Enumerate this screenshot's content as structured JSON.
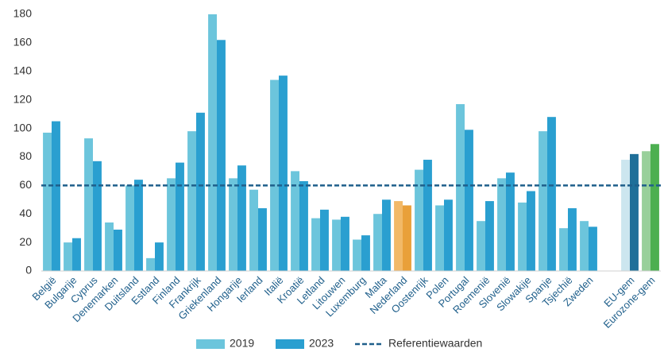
{
  "chart_data": {
    "type": "bar",
    "categories": [
      "België",
      "Bulgarije",
      "Cyprus",
      "Denemarken",
      "Duitsland",
      "Estland",
      "Finland",
      "Frankrijk",
      "Griekenland",
      "Hongarije",
      "Ierland",
      "Italië",
      "Kroatië",
      "Letland",
      "Litouwen",
      "Luxemburg",
      "Malta",
      "Nederland",
      "Oostenrijk",
      "Polen",
      "Portugal",
      "Roemenië",
      "Slovenië",
      "Slowakije",
      "Spanje",
      "Tsjechië",
      "Zweden",
      null,
      "EU-gem",
      "Eurozone-gem"
    ],
    "series": [
      {
        "name": "2019",
        "color": "#6cc5dc",
        "values": [
          97,
          20,
          93,
          34,
          60,
          9,
          65,
          98,
          180,
          65,
          57,
          134,
          70,
          37,
          36,
          22,
          40,
          49,
          71,
          46,
          117,
          35,
          65,
          48,
          98,
          30,
          35,
          null,
          78,
          84
        ],
        "colors": [
          "#6cc5dc",
          "#6cc5dc",
          "#6cc5dc",
          "#6cc5dc",
          "#6cc5dc",
          "#6cc5dc",
          "#6cc5dc",
          "#6cc5dc",
          "#6cc5dc",
          "#6cc5dc",
          "#6cc5dc",
          "#6cc5dc",
          "#6cc5dc",
          "#6cc5dc",
          "#6cc5dc",
          "#6cc5dc",
          "#6cc5dc",
          "#f2b968",
          "#6cc5dc",
          "#6cc5dc",
          "#6cc5dc",
          "#6cc5dc",
          "#6cc5dc",
          "#6cc5dc",
          "#6cc5dc",
          "#6cc5dc",
          "#6cc5dc",
          null,
          "#cce6ef",
          "#98d09a"
        ]
      },
      {
        "name": "2023",
        "color": "#2a9fd0",
        "values": [
          105,
          23,
          77,
          29,
          64,
          20,
          76,
          111,
          162,
          74,
          44,
          137,
          63,
          43,
          38,
          25,
          50,
          46,
          78,
          50,
          99,
          49,
          69,
          56,
          108,
          44,
          31,
          null,
          82,
          89
        ],
        "colors": [
          "#2a9fd0",
          "#2a9fd0",
          "#2a9fd0",
          "#2a9fd0",
          "#2a9fd0",
          "#2a9fd0",
          "#2a9fd0",
          "#2a9fd0",
          "#2a9fd0",
          "#2a9fd0",
          "#2a9fd0",
          "#2a9fd0",
          "#2a9fd0",
          "#2a9fd0",
          "#2a9fd0",
          "#2a9fd0",
          "#2a9fd0",
          "#e9a03a",
          "#2a9fd0",
          "#2a9fd0",
          "#2a9fd0",
          "#2a9fd0",
          "#2a9fd0",
          "#2a9fd0",
          "#2a9fd0",
          "#2a9fd0",
          "#2a9fd0",
          null,
          "#1f6f99",
          "#4caf50"
        ]
      }
    ],
    "reference": {
      "name": "Referentiewaarden",
      "value": 60,
      "color": "#1f5f8b"
    },
    "ylim": [
      0,
      180
    ],
    "yticks": [
      0,
      20,
      40,
      60,
      80,
      100,
      120,
      140,
      160,
      180
    ],
    "grid": false
  }
}
